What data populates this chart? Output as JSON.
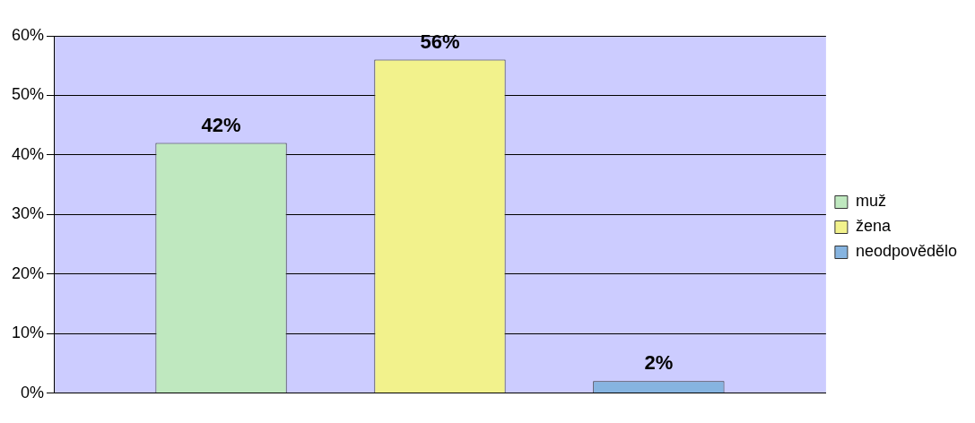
{
  "chart_data": {
    "type": "bar",
    "categories": [
      null
    ],
    "series": [
      {
        "name": "muž",
        "color": "#bfe8bf",
        "values": [
          42
        ],
        "value_labels": [
          "42%"
        ]
      },
      {
        "name": "žena",
        "color": "#f2f28c",
        "values": [
          56
        ],
        "value_labels": [
          "56%"
        ]
      },
      {
        "name": "neodpovědělo",
        "color": "#86b4e0",
        "values": [
          2
        ],
        "value_labels": [
          "2%"
        ]
      }
    ],
    "ylim": [
      0,
      60
    ],
    "yticks": [
      {
        "value": 0,
        "label": "0%"
      },
      {
        "value": 10,
        "label": "10%"
      },
      {
        "value": 20,
        "label": "20%"
      },
      {
        "value": 30,
        "label": "30%"
      },
      {
        "value": 40,
        "label": "40%"
      },
      {
        "value": 50,
        "label": "50%"
      },
      {
        "value": 60,
        "label": "60%"
      }
    ],
    "grid": "y",
    "legend": "right"
  }
}
